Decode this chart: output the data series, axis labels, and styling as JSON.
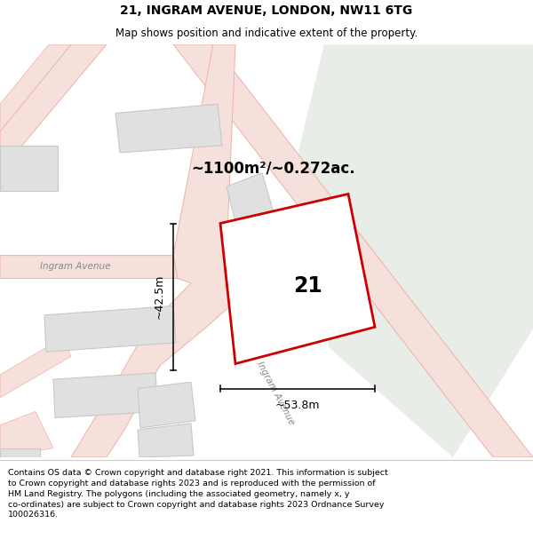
{
  "title": "21, INGRAM AVENUE, LONDON, NW11 6TG",
  "subtitle": "Map shows position and indicative extent of the property.",
  "footer": "Contains OS data © Crown copyright and database right 2021. This information is subject\nto Crown copyright and database rights 2023 and is reproduced with the permission of\nHM Land Registry. The polygons (including the associated geometry, namely x, y\nco-ordinates) are subject to Crown copyright and database rights 2023 Ordnance Survey\n100026316.",
  "bg_map_color": "#f7f4f2",
  "bg_green_color": "#e8ede8",
  "road_line_color": "#f0b0a8",
  "road_fill_color": "#f5e0dc",
  "building_color": "#e0e0e0",
  "building_outline": "#c8c8c8",
  "subject_outline": "#cc0000",
  "subject_fill": "#ffffff",
  "measure_color": "#111111",
  "area_text": "~1100m²/~0.272ac.",
  "label_21": "21",
  "dim_width": "~53.8m",
  "dim_height": "~42.5m",
  "street_label1": "Ingram Avenue",
  "street_label2": "Ingram Avenue",
  "title_fontsize": 10,
  "subtitle_fontsize": 8.5,
  "footer_fontsize": 6.8
}
